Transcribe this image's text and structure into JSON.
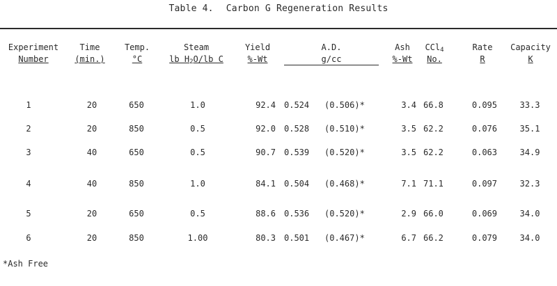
{
  "title": {
    "label": "Table 4.",
    "caption": "Carbon G Regeneration Results"
  },
  "headers": {
    "experiment": {
      "line1": "Experiment",
      "line2": "Number"
    },
    "time": {
      "line1": "Time",
      "line2": "(min.)"
    },
    "temp": {
      "line1": "Temp.",
      "line2": "°C"
    },
    "steam": {
      "line1": "Steam",
      "line2_pre": "lb H",
      "line2_sub": "2",
      "line2_post": "O/lb C"
    },
    "yield": {
      "line1": "Yield",
      "line2": "%-Wt"
    },
    "ad": {
      "line1": "A.D.",
      "line2": "g/cc"
    },
    "ash": {
      "line1": "Ash",
      "line2": "%-Wt"
    },
    "ccl4": {
      "line1_pre": "CCl",
      "line1_sub": "4",
      "line2": "No."
    },
    "rate": {
      "line1": "Rate",
      "line2": "R"
    },
    "capacity": {
      "line1": "Capacity",
      "line2": "K"
    }
  },
  "rows": [
    {
      "experiment": "1",
      "time": "20",
      "temp": "650",
      "steam": "1.0",
      "yield": "92.4",
      "ad": "0.524",
      "ad_ash_free": "(0.506)*",
      "ash": "3.4",
      "ccl4": "66.8",
      "rate": "0.095",
      "capacity": "33.3"
    },
    {
      "experiment": "2",
      "time": "20",
      "temp": "850",
      "steam": "0.5",
      "yield": "92.0",
      "ad": "0.528",
      "ad_ash_free": "(0.510)*",
      "ash": "3.5",
      "ccl4": "62.2",
      "rate": "0.076",
      "capacity": "35.1"
    },
    {
      "experiment": "3",
      "time": "40",
      "temp": "650",
      "steam": "0.5",
      "yield": "90.7",
      "ad": "0.539",
      "ad_ash_free": "(0.520)*",
      "ash": "3.5",
      "ccl4": "62.2",
      "rate": "0.063",
      "capacity": "34.9"
    },
    {
      "experiment": "4",
      "time": "40",
      "temp": "850",
      "steam": "1.0",
      "yield": "84.1",
      "ad": "0.504",
      "ad_ash_free": "(0.468)*",
      "ash": "7.1",
      "ccl4": "71.1",
      "rate": "0.097",
      "capacity": "32.3"
    },
    {
      "experiment": "5",
      "time": "20",
      "temp": "650",
      "steam": "0.5",
      "yield": "88.6",
      "ad": "0.536",
      "ad_ash_free": "(0.520)*",
      "ash": "2.9",
      "ccl4": "66.0",
      "rate": "0.069",
      "capacity": "34.0"
    },
    {
      "experiment": "6",
      "time": "20",
      "temp": "850",
      "steam": "1.00",
      "yield": "80.3",
      "ad": "0.501",
      "ad_ash_free": "(0.467)*",
      "ash": "6.7",
      "ccl4": "66.2",
      "rate": "0.079",
      "capacity": "34.0"
    }
  ],
  "footnote": "*Ash Free"
}
